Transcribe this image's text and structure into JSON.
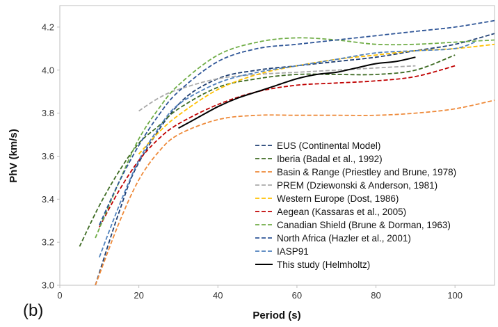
{
  "panel_label": "(b)",
  "chart_data": {
    "type": "line",
    "xlabel": "Period (s)",
    "ylabel": "PhV (km/s)",
    "xlim": [
      0,
      110
    ],
    "ylim": [
      3.0,
      4.3
    ],
    "x_ticks": [
      "0",
      "20",
      "40",
      "60",
      "80",
      "100"
    ],
    "y_ticks": [
      "3.0",
      "3.2",
      "3.4",
      "3.6",
      "3.8",
      "4.0",
      "4.2"
    ],
    "grid": false,
    "legend_position": "lower-right",
    "series": [
      {
        "name": "EUS (Continental Model)",
        "color": "#1f3f73",
        "dash": "dashed",
        "x": [
          9,
          15,
          20,
          30,
          40,
          50,
          60,
          70,
          80,
          90,
          100,
          110
        ],
        "y": [
          3.0,
          3.34,
          3.57,
          3.84,
          3.96,
          4.0,
          4.02,
          4.04,
          4.06,
          4.09,
          4.12,
          4.17
        ]
      },
      {
        "name": "Iberia (Badal et al., 1992)",
        "color": "#3e6b23",
        "dash": "dashed",
        "x": [
          5,
          10,
          15,
          20,
          25,
          30,
          40,
          50,
          60,
          70,
          80,
          90,
          100
        ],
        "y": [
          3.18,
          3.37,
          3.53,
          3.66,
          3.74,
          3.82,
          3.92,
          3.96,
          3.98,
          3.98,
          3.98,
          4.0,
          4.07
        ]
      },
      {
        "name": "Basin & Range (Priestley and Brune, 1978)",
        "color": "#ee8a3a",
        "dash": "dashed",
        "x": [
          9,
          15,
          20,
          25,
          30,
          40,
          50,
          60,
          70,
          80,
          90,
          100,
          110
        ],
        "y": [
          3.0,
          3.29,
          3.49,
          3.62,
          3.7,
          3.77,
          3.79,
          3.79,
          3.79,
          3.79,
          3.8,
          3.82,
          3.86
        ]
      },
      {
        "name": "PREM (Dziewonski & Anderson, 1981)",
        "color": "#a9a9a9",
        "dash": "dashed",
        "x": [
          20,
          25,
          30,
          40,
          50,
          60,
          70,
          80,
          90
        ],
        "y": [
          3.81,
          3.87,
          3.91,
          3.96,
          3.98,
          3.99,
          4.0,
          4.01,
          4.02
        ]
      },
      {
        "name": "Western Europe (Dost, 1986)",
        "color": "#ffc000",
        "dash": "dashed",
        "x": [
          20,
          25,
          30,
          40,
          50,
          60,
          70,
          80,
          90,
          100,
          110
        ],
        "y": [
          3.61,
          3.71,
          3.79,
          3.91,
          3.98,
          4.02,
          4.05,
          4.07,
          4.09,
          4.1,
          4.12
        ]
      },
      {
        "name": "Aegean (Kassaras et al., 2005)",
        "color": "#c00000",
        "dash": "dashed",
        "x": [
          10,
          15,
          20,
          25,
          30,
          40,
          50,
          60,
          70,
          80,
          90,
          100
        ],
        "y": [
          3.27,
          3.44,
          3.58,
          3.68,
          3.75,
          3.84,
          3.9,
          3.93,
          3.94,
          3.95,
          3.97,
          4.02
        ]
      },
      {
        "name": "Canadian Shield (Brune & Dorman, 1963)",
        "color": "#70ad47",
        "dash": "dashed",
        "x": [
          9,
          15,
          20,
          25,
          30,
          40,
          50,
          60,
          70,
          80,
          90,
          100,
          110
        ],
        "y": [
          3.22,
          3.48,
          3.68,
          3.82,
          3.93,
          4.07,
          4.13,
          4.15,
          4.14,
          4.12,
          4.12,
          4.13,
          4.14
        ]
      },
      {
        "name": "North Africa (Hazler et al., 2001)",
        "color": "#2e5597",
        "dash": "dashed",
        "x": [
          10,
          15,
          20,
          25,
          30,
          40,
          50,
          60,
          70,
          80,
          90,
          100,
          110
        ],
        "y": [
          3.28,
          3.48,
          3.65,
          3.79,
          3.9,
          4.04,
          4.1,
          4.12,
          4.14,
          4.16,
          4.18,
          4.2,
          4.23
        ]
      },
      {
        "name": "IASP91",
        "color": "#4f81bd",
        "dash": "dashed",
        "x": [
          10,
          15,
          20,
          25,
          30,
          40,
          50,
          60,
          70,
          80,
          90,
          100,
          105
        ],
        "y": [
          3.13,
          3.37,
          3.58,
          3.73,
          3.84,
          3.94,
          3.99,
          4.02,
          4.05,
          4.08,
          4.09,
          4.1,
          4.13
        ]
      },
      {
        "name": "This study (Helmholtz)",
        "color": "#000000",
        "dash": "solid",
        "x": [
          30,
          35,
          40,
          45,
          50,
          55,
          60,
          65,
          70,
          75,
          80,
          85,
          90
        ],
        "y": [
          3.73,
          3.78,
          3.83,
          3.87,
          3.9,
          3.93,
          3.96,
          3.98,
          3.99,
          4.01,
          4.03,
          4.04,
          4.06
        ]
      }
    ]
  }
}
